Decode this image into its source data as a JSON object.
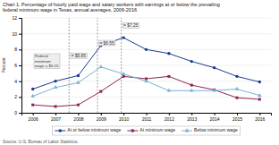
{
  "chart_data": {
    "type": "line",
    "title": "Chart 1. Percentage of hourly paid wage and salary workers with earnings at or below the prevailing\nfederal minimum wage in Texas, annual averages, 2006-2016",
    "source": "Source: U.S. Bureau of Labor Statistics.",
    "y_label": "Percent",
    "x": [
      2006,
      2007,
      2008,
      2009,
      2010,
      2011,
      2012,
      2013,
      2014,
      2015,
      2016
    ],
    "series": [
      {
        "name": "At or below minimum wage",
        "color": "#1a3a8f",
        "marker": "circle",
        "values": [
          3.0,
          4.0,
          4.7,
          8.5,
          9.5,
          8.0,
          7.5,
          6.5,
          5.7,
          4.6,
          3.9
        ]
      },
      {
        "name": "At minimum wage",
        "color": "#8b2252",
        "marker": "square",
        "values": [
          1.0,
          0.8,
          1.0,
          2.7,
          4.6,
          4.3,
          4.6,
          3.5,
          2.9,
          1.9,
          1.7
        ]
      },
      {
        "name": "Below minimum wage",
        "color": "#7ab0d4",
        "marker": "triangle",
        "values": [
          2.1,
          3.2,
          3.8,
          5.8,
          4.9,
          4.0,
          2.8,
          2.8,
          2.8,
          3.0,
          2.2
        ]
      }
    ],
    "xlim": [
      2005.5,
      2016.5
    ],
    "xticks": [
      2006,
      2007,
      2008,
      2009,
      2010,
      2011,
      2012,
      2013,
      2014,
      2015,
      2016
    ],
    "ylim": [
      0,
      12.0
    ],
    "yticks": [
      0,
      2,
      4,
      6,
      8,
      10,
      12
    ],
    "grid": "y",
    "legend": "bottom",
    "vlines": [
      {
        "x": 2007.6,
        "label": "= $5.85",
        "y": 7.2
      },
      {
        "x": 2008.85,
        "label": "= $6.55",
        "y": 8.8
      },
      {
        "x": 2009.9,
        "label": "= $7.25",
        "y": 11.0
      }
    ],
    "annotations": [
      {
        "text": "Federal\nminimum\nwage = $5.15",
        "x": 2006.05,
        "y": 6.5
      }
    ]
  }
}
